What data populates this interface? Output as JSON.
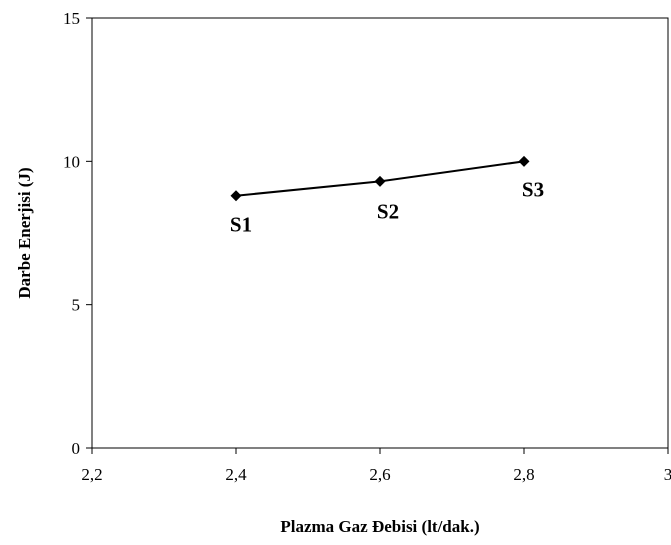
{
  "chart_data": {
    "type": "line",
    "title": "",
    "xlabel": "Plazma Gaz Ðebisi (lt/dak.)",
    "ylabel": "Darbe Enerjisi (J)",
    "xlim": [
      2.2,
      3.0
    ],
    "ylim": [
      0,
      15
    ],
    "x_ticks": [
      2.2,
      2.4,
      2.6,
      2.8,
      3.0
    ],
    "x_tick_labels": [
      "2,2",
      "2,4",
      "2,6",
      "2,8",
      "3"
    ],
    "y_ticks": [
      0,
      5,
      10,
      15
    ],
    "y_tick_labels": [
      "0",
      "5",
      "10",
      "15"
    ],
    "grid": false,
    "legend": "none",
    "series": [
      {
        "color": "#000000",
        "marker": "diamond",
        "points": [
          {
            "x": 2.4,
            "y": 8.8,
            "label": "S1"
          },
          {
            "x": 2.6,
            "y": 9.3,
            "label": "S2"
          },
          {
            "x": 2.8,
            "y": 10.0,
            "label": "S3"
          }
        ]
      }
    ]
  }
}
